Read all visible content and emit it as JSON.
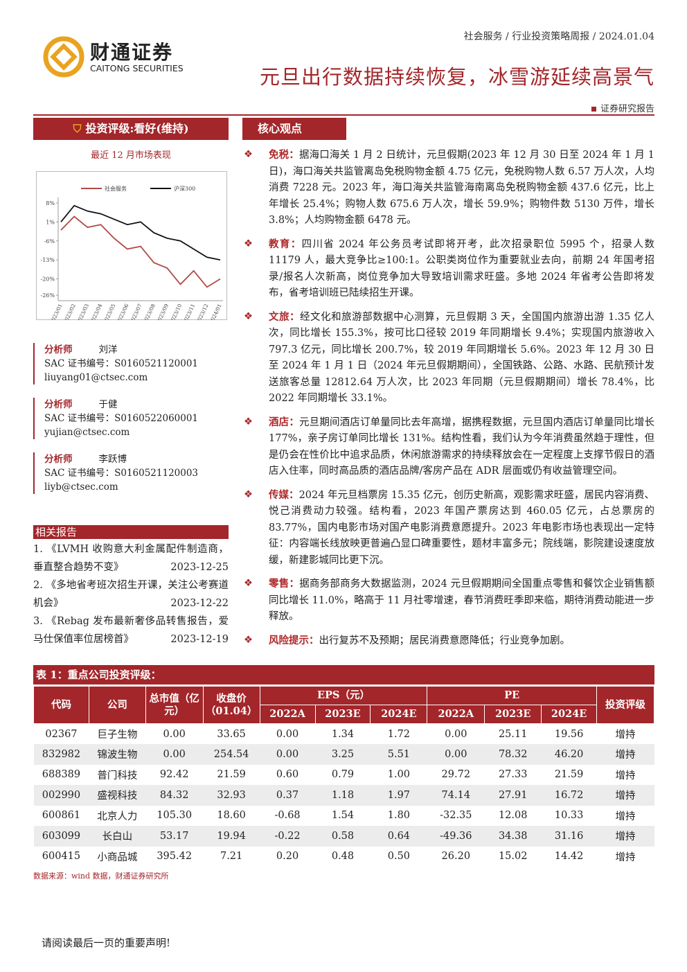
{
  "header": {
    "logo_cn": "财通证券",
    "logo_en": "CAITONG SECURITIES",
    "breadcrumb": [
      "社会服务",
      "行业投资策略周报",
      "2024.01.04"
    ],
    "title": "元旦出行数据持续恢复，冰雪游延续高景气",
    "report_type": "证券研究报告"
  },
  "sidebar": {
    "rating": "投资评级:看好(维持)",
    "chart_caption": "最近 12 月市场表现",
    "chart": {
      "type": "line",
      "categories": [
        "2023/01",
        "2023/02",
        "2023/03",
        "2023/04",
        "2023/05",
        "2023/06",
        "2023/07",
        "2023/08",
        "2023/09",
        "2023/10",
        "2023/11",
        "2023/12",
        "2024/01"
      ],
      "series": [
        {
          "name": "社会服务",
          "color": "#b04a44",
          "values": [
            -2,
            3,
            -1,
            0,
            -5,
            -9,
            -8,
            -14,
            -16,
            -22,
            -17,
            -23,
            -20
          ]
        },
        {
          "name": "沪深300",
          "color": "#111111",
          "values": [
            1,
            7,
            5,
            4,
            2,
            0,
            1,
            -3,
            -5,
            -6,
            -9,
            -12,
            -13
          ]
        }
      ],
      "ylim": [
        -27,
        9
      ],
      "yticks": [
        {
          "value": 8,
          "label": "8%"
        },
        {
          "value": 1,
          "label": "1%"
        },
        {
          "value": -6,
          "label": "-6%"
        },
        {
          "value": -13,
          "label": "-13%"
        },
        {
          "value": -20,
          "label": "-20%"
        },
        {
          "value": -26,
          "label": "-26%"
        }
      ]
    },
    "analysts": [
      {
        "role": "分析师",
        "name": "刘洋",
        "sac": "SAC 证书编号：S0160521120001",
        "email": "liuyang01@ctsec.com"
      },
      {
        "role": "分析师",
        "name": "于健",
        "sac": "SAC 证书编号：S0160522060001",
        "email": "yujian@ctsec.com"
      },
      {
        "role": "分析师",
        "name": "李跃博",
        "sac": "SAC 证书编号：S0160521120003",
        "email": "liyb@ctsec.com"
      }
    ],
    "related_title": "相关报告",
    "related": [
      {
        "text": "1. 《LVMH 收购意大利金属配件制造商，垂直整合趋势不变》",
        "date": "2023-12-25"
      },
      {
        "text": "2. 《多地省考班次招生开课，关注公考赛道机会》",
        "date": "2023-12-22"
      },
      {
        "text": "3. 《Rebag 发布最新奢侈品转售报告，爱马仕保值率位居榜首》",
        "date": "2023-12-19"
      }
    ]
  },
  "main": {
    "section_title": "核心观点",
    "points": [
      {
        "label": "免税：",
        "text": "据海口海关 1 月 2 日统计，元旦假期(2023 年 12 月 30 日至 2024 年 1 月 1 日)，海口海关共监管离岛免税购物金额 4.75 亿元，免税购物人数 6.57 万人次，人均消费 7228 元。2023 年，海口海关共监管海南离岛免税购物金额 437.6 亿元，比上年增长 25.4%；购物人数 675.6 万人次，增长 59.9%；购物件数 5130 万件，增长 3.8%；人均购物金额 6478 元。"
      },
      {
        "label": "教育：",
        "text": "四川省 2024 年公务员考试即将开考，此次招录职位 5995 个，招录人数 11179 人，最大竞争比≥100:1。公职类岗位作为重要就业去向，前期 24 年国考招录/报名人次新高，岗位竞争加大导致培训需求旺盛。多地 2024 年省考公告即将发布，省考培训班已陆续招生开课。"
      },
      {
        "label": "文旅：",
        "text": "经文化和旅游部数据中心测算，元旦假期 3 天，全国国内旅游出游 1.35 亿人次，同比增长 155.3%，按可比口径较 2019 年同期增长 9.4%；实现国内旅游收入 797.3 亿元，同比增长 200.7%，较 2019 年同期增长 5.6%。2023 年 12 月 30 日至 2024 年 1 月 1 日（2024 年元旦假期期间），全国铁路、公路、水路、民航预计发送旅客总量 12812.64 万人次，比 2023 年同期（元旦假期期间）增长 78.4%，比 2022 年同期增长 33.1%。"
      },
      {
        "label": "酒店：",
        "text": "元旦期间酒店订单量同比去年高增，据携程数据，元旦国内酒店订单量同比增长 177%，亲子房订单同比增长 131%。结构性看，我们认为今年消费虽然趋于理性，但是仍会在性价比中追求品质，休闲旅游需求的持续释放会在一定程度上支撑节假日的酒店入住率，同时高品质的酒店品牌/客房产品在 ADR 层面或仍有收益管理空间。"
      },
      {
        "label": "传媒：",
        "text": "2024 年元旦档票房 15.35 亿元，创历史新高，观影需求旺盛，居民内容消费、悦己消费动力较强。结构看，2023 年国产票房达到 460.05 亿元，占总票房的 83.77%，国内电影市场对国产电影消费意愿提升。2023 年电影市场也表现出一定特征：内容端长线放映更普遍凸显口碑重要性，题材丰富多元；院线端，影院建设速度放缓，新建影城同比更下沉。"
      },
      {
        "label": "零售：",
        "text": "据商务部商务大数据监测，2024 元旦假期期间全国重点零售和餐饮企业销售额同比增长 11.0%，略高于 11 月社零增速，春节消费旺季即来临，期待消费动能进一步释放。"
      },
      {
        "label": "风险提示：",
        "text": "出行复苏不及预期；居民消费意愿降低；行业竞争加剧。"
      }
    ]
  },
  "table": {
    "caption": "表 1：重点公司投资评级：",
    "head": {
      "code": "代码",
      "company": "公司",
      "cap": "总市值（亿元）",
      "close": "收盘价（01.04）",
      "eps": "EPS（元）",
      "pe": "PE",
      "rating": "投资评级",
      "years": [
        "2022A",
        "2023E",
        "2024E",
        "2022A",
        "2023E",
        "2024E"
      ]
    },
    "rows": [
      [
        "02367",
        "巨子生物",
        "0.00",
        "33.65",
        "0.00",
        "1.34",
        "1.72",
        "0.00",
        "25.11",
        "19.56",
        "增持"
      ],
      [
        "832982",
        "锦波生物",
        "0.00",
        "254.54",
        "0.00",
        "3.25",
        "5.51",
        "0.00",
        "78.32",
        "46.20",
        "增持"
      ],
      [
        "688389",
        "普门科技",
        "92.42",
        "21.59",
        "0.60",
        "0.79",
        "1.00",
        "29.72",
        "27.33",
        "21.59",
        "增持"
      ],
      [
        "002990",
        "盛视科技",
        "84.32",
        "32.93",
        "0.37",
        "1.18",
        "1.97",
        "74.14",
        "27.91",
        "16.72",
        "增持"
      ],
      [
        "600861",
        "北京人力",
        "105.30",
        "18.60",
        "-0.68",
        "1.54",
        "1.80",
        "-32.35",
        "12.08",
        "10.33",
        "增持"
      ],
      [
        "603099",
        "长白山",
        "53.17",
        "19.94",
        "-0.22",
        "0.58",
        "0.64",
        "-49.36",
        "34.38",
        "31.16",
        "增持"
      ],
      [
        "600415",
        "小商品城",
        "395.42",
        "7.21",
        "0.20",
        "0.48",
        "0.50",
        "26.20",
        "15.02",
        "14.42",
        "增持"
      ]
    ],
    "source": "数据来源：wind 数据，财通证券研究所"
  },
  "footer": "请阅读最后一页的重要声明!"
}
